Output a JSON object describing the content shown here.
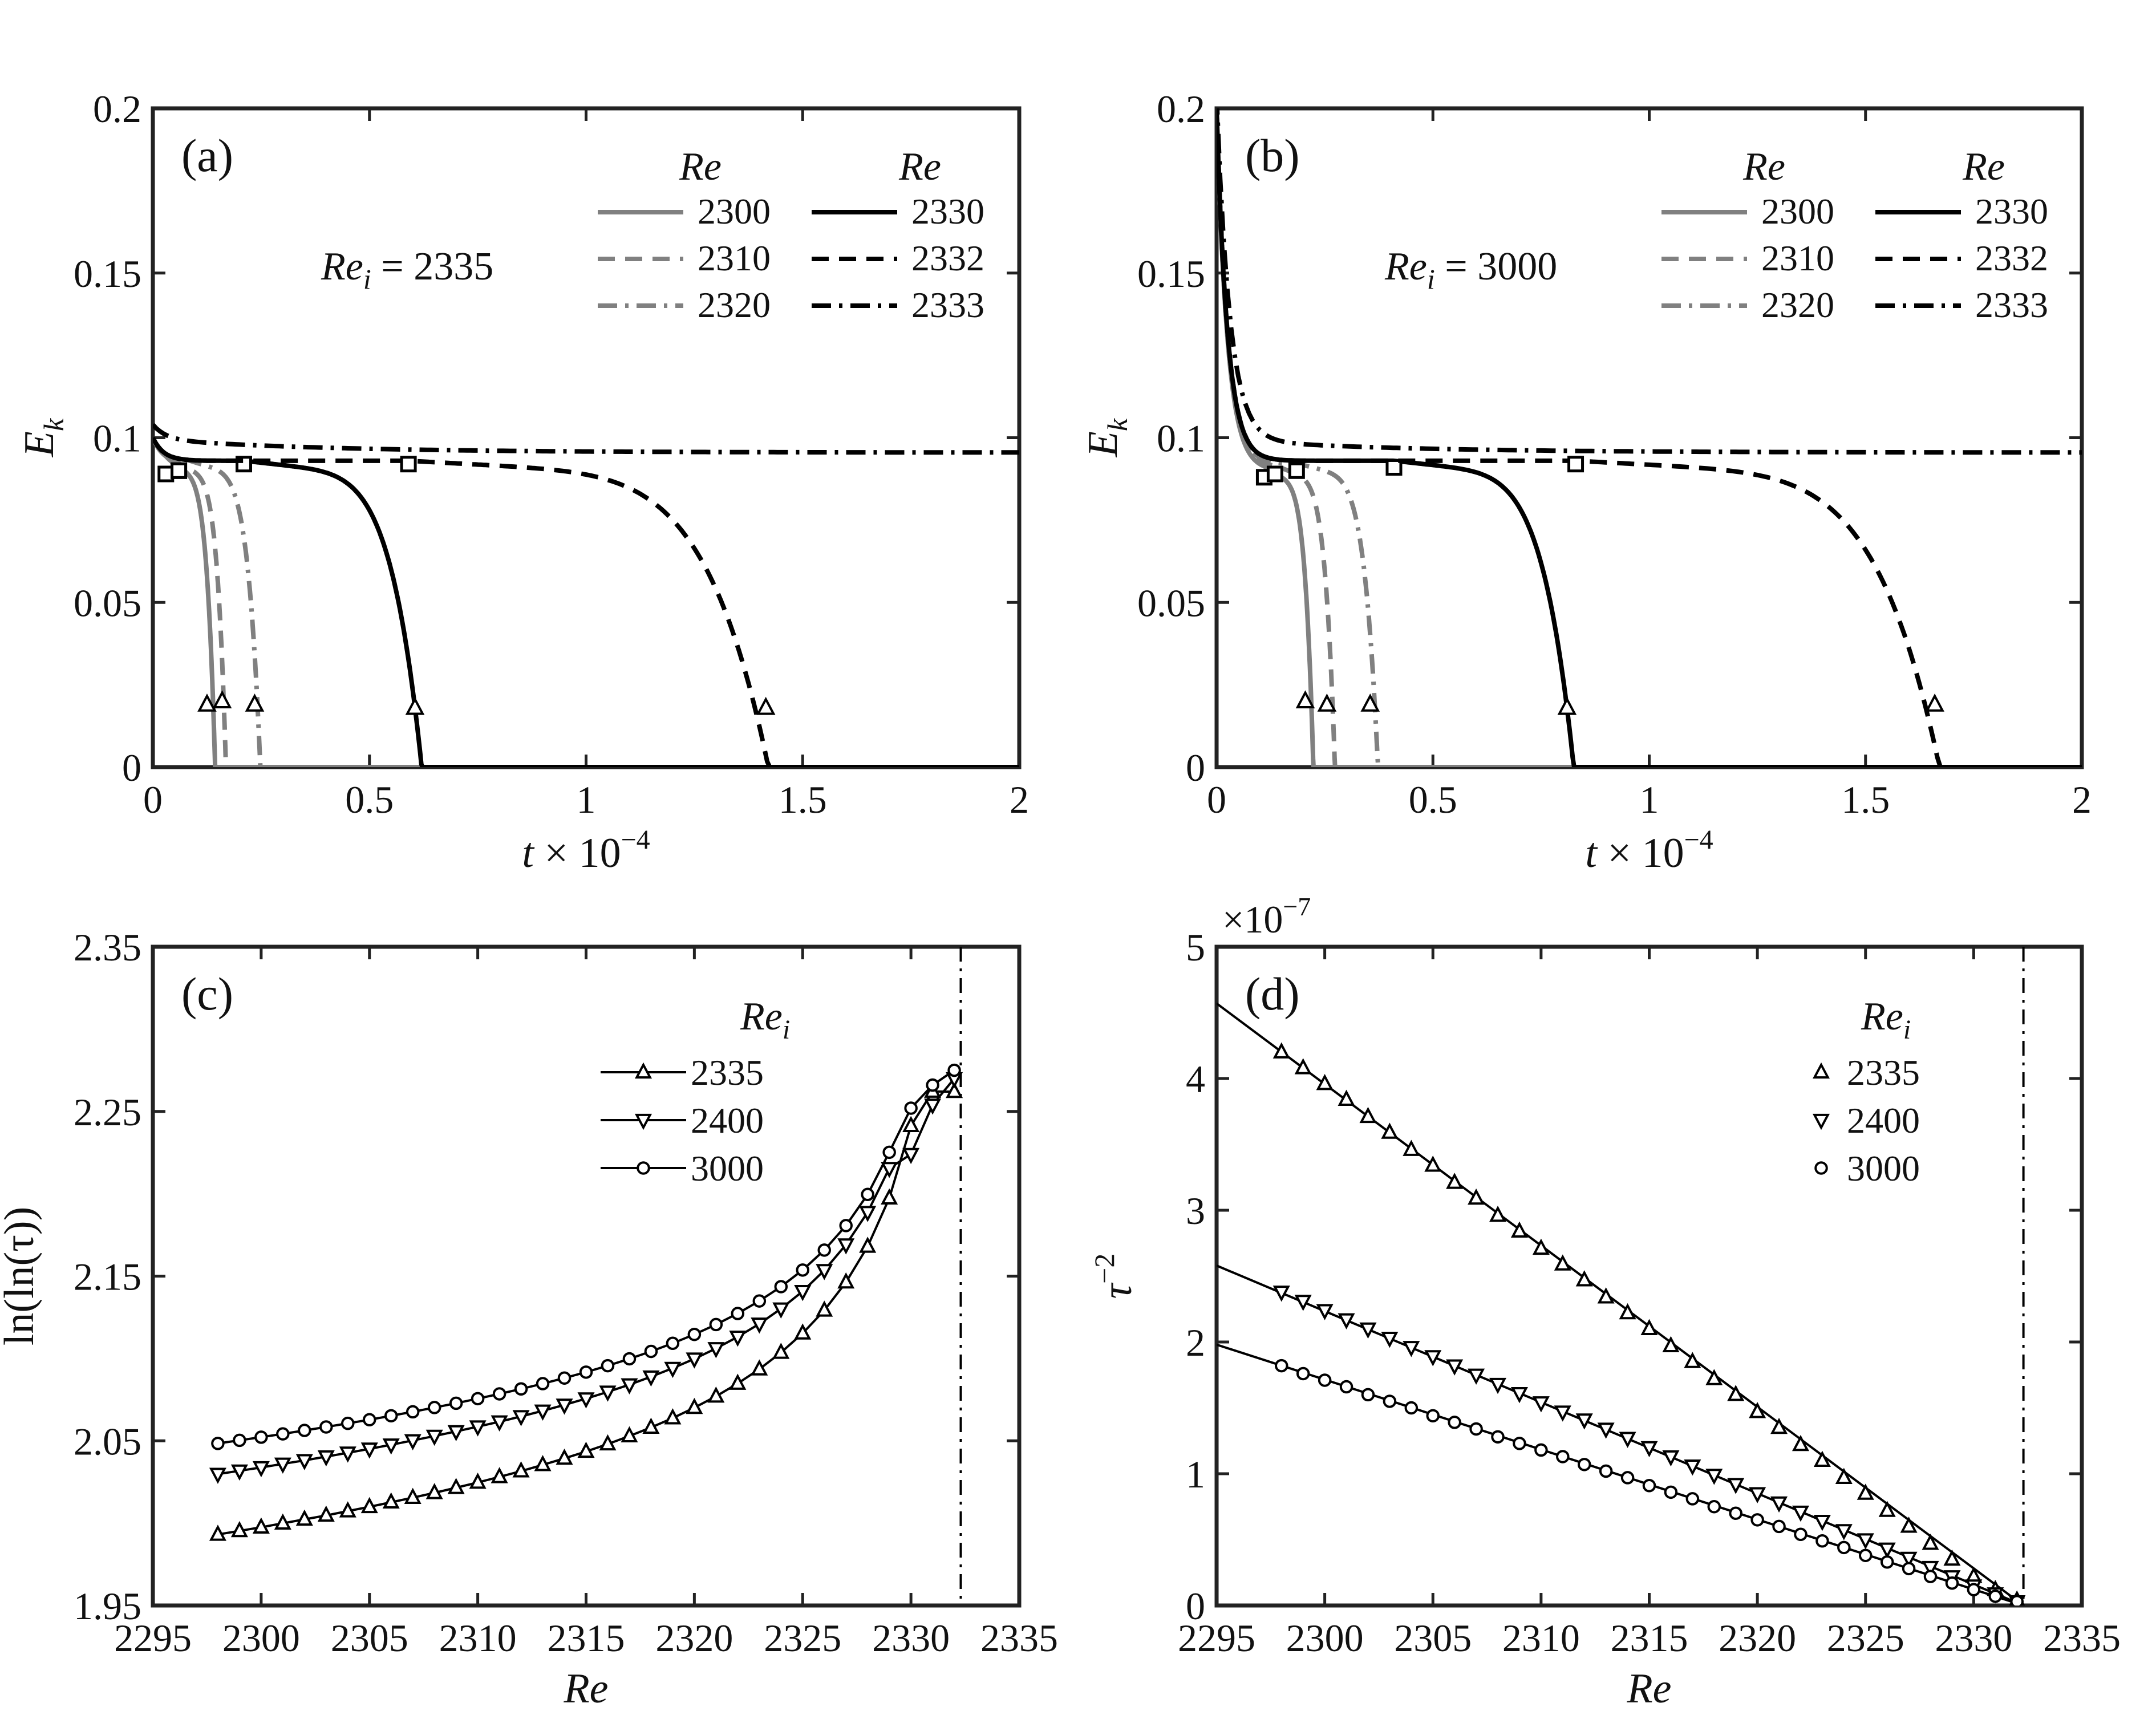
{
  "chart_data": [
    {
      "panel": "(a)",
      "type": "line",
      "xlabel": "t × 10^-4",
      "ylabel": "E_k",
      "xlim": [
        0,
        2
      ],
      "ylim": [
        0,
        0.2
      ],
      "xticks": [
        0,
        0.5,
        1,
        1.5,
        2
      ],
      "xtick_labels": [
        "0",
        "0.5",
        "1",
        "1.5",
        "2"
      ],
      "yticks": [
        0,
        0.05,
        0.1,
        0.15,
        0.2
      ],
      "ytick_labels": [
        "0",
        "0.05",
        "0.1",
        "0.15",
        "0.2"
      ],
      "annotation": {
        "var": "Re",
        "sub": "i",
        "value": "= 2335"
      },
      "legend_title": "Re",
      "start_energy": 0.1,
      "series": [
        {
          "name": "2300",
          "color": "#808080",
          "dash": "solid",
          "t_end": 0.145,
          "t_plateau": 0.03,
          "plateau": 0.092,
          "square_t": 0.03,
          "square_E": 0.089,
          "triangle_t": 0.125,
          "triangle_E": 0.019
        },
        {
          "name": "2310",
          "color": "#808080",
          "dash": "dash",
          "t_end": 0.17,
          "t_plateau": 0.05,
          "plateau": 0.092,
          "square_t": 0.06,
          "square_E": 0.09,
          "triangle_t": 0.16,
          "triangle_E": 0.02
        },
        {
          "name": "2320",
          "color": "#808080",
          "dash": "dashdot",
          "t_end": 0.25,
          "t_plateau": 0.08,
          "plateau": 0.093,
          "square_t": 0.06,
          "square_E": 0.09,
          "triangle_t": 0.235,
          "triangle_E": 0.019
        },
        {
          "name": "2330",
          "color": "#000000",
          "dash": "solid",
          "t_end": 0.625,
          "t_plateau": 0.21,
          "plateau": 0.093,
          "square_t": 0.21,
          "square_E": 0.092,
          "triangle_t": 0.605,
          "triangle_E": 0.018
        },
        {
          "name": "2332",
          "color": "#000000",
          "dash": "dash",
          "t_end": 1.43,
          "t_plateau": 0.59,
          "plateau": 0.093,
          "square_t": 0.59,
          "square_E": 0.092,
          "triangle_t": 1.415,
          "triangle_E": 0.018
        },
        {
          "name": "2333",
          "color": "#000000",
          "dash": "dashdot",
          "t_end": null,
          "plateau": 0.0955
        }
      ]
    },
    {
      "panel": "(b)",
      "type": "line",
      "xlabel": "t × 10^-4",
      "ylabel": "E_k",
      "xlim": [
        0,
        2
      ],
      "ylim": [
        0,
        0.2
      ],
      "xticks": [
        0,
        0.5,
        1,
        1.5,
        2
      ],
      "xtick_labels": [
        "0",
        "0.5",
        "1",
        "1.5",
        "2"
      ],
      "yticks": [
        0,
        0.05,
        0.1,
        0.15,
        0.2
      ],
      "ytick_labels": [
        "0",
        "0.05",
        "0.1",
        "0.15",
        "0.2"
      ],
      "annotation": {
        "var": "Re",
        "sub": "i",
        "value": "= 3000"
      },
      "legend_title": "Re",
      "start_energy": 0.2,
      "series": [
        {
          "name": "2300",
          "color": "#808080",
          "dash": "solid",
          "t_end": 0.225,
          "t_plateau": 0.11,
          "plateau": 0.09,
          "square_t": 0.11,
          "square_E": 0.088,
          "triangle_t": 0.205,
          "triangle_E": 0.02
        },
        {
          "name": "2310",
          "color": "#808080",
          "dash": "dash",
          "t_end": 0.275,
          "t_plateau": 0.14,
          "plateau": 0.091,
          "square_t": 0.135,
          "square_E": 0.089,
          "triangle_t": 0.255,
          "triangle_E": 0.019
        },
        {
          "name": "2320",
          "color": "#808080",
          "dash": "dashdot",
          "t_end": 0.375,
          "t_plateau": 0.19,
          "plateau": 0.092,
          "square_t": 0.185,
          "square_E": 0.09,
          "triangle_t": 0.355,
          "triangle_E": 0.019
        },
        {
          "name": "2330",
          "color": "#000000",
          "dash": "solid",
          "t_end": 0.83,
          "t_plateau": 0.41,
          "plateau": 0.093,
          "square_t": 0.41,
          "square_E": 0.091,
          "triangle_t": 0.81,
          "triangle_E": 0.018
        },
        {
          "name": "2332",
          "color": "#000000",
          "dash": "dash",
          "t_end": 1.68,
          "t_plateau": 0.83,
          "plateau": 0.093,
          "square_t": 0.83,
          "square_E": 0.092,
          "triangle_t": 1.66,
          "triangle_E": 0.019
        },
        {
          "name": "2333",
          "color": "#000000",
          "dash": "dashdot",
          "t_end": null,
          "plateau": 0.0955
        }
      ]
    },
    {
      "panel": "(c)",
      "type": "line",
      "xlabel": "Re",
      "ylabel": "ln(ln(τ))",
      "xlim": [
        2295,
        2335
      ],
      "ylim": [
        1.95,
        2.35
      ],
      "xticks": [
        2295,
        2300,
        2305,
        2310,
        2315,
        2320,
        2325,
        2330,
        2335
      ],
      "xtick_labels": [
        "2295",
        "2300",
        "2305",
        "2310",
        "2315",
        "2320",
        "2325",
        "2330",
        "2335"
      ],
      "yticks": [
        1.95,
        2.05,
        2.15,
        2.25,
        2.35
      ],
      "ytick_labels": [
        "1.95",
        "2.05",
        "2.15",
        "2.25",
        "2.35"
      ],
      "critical_re": 2332.3,
      "legend_title": "Re_i",
      "x": [
        2298,
        2299,
        2300,
        2301,
        2302,
        2303,
        2304,
        2305,
        2306,
        2307,
        2308,
        2309,
        2310,
        2311,
        2312,
        2313,
        2314,
        2315,
        2316,
        2317,
        2318,
        2319,
        2320,
        2321,
        2322,
        2323,
        2324,
        2325,
        2326,
        2327,
        2328,
        2329,
        2330,
        2331,
        2332
      ],
      "series": [
        {
          "name": "2335",
          "marker": "triangle-up",
          "values": [
            1.9931,
            1.9953,
            1.9975,
            1.9999,
            2.0023,
            2.0047,
            2.0073,
            2.0099,
            2.0127,
            2.0155,
            2.0184,
            2.0215,
            2.0247,
            2.0281,
            2.0316,
            2.0354,
            2.0393,
            2.0435,
            2.048,
            2.0529,
            2.0581,
            2.0638,
            2.0701,
            2.077,
            2.0848,
            2.0935,
            2.1036,
            2.1153,
            2.1292,
            2.1463,
            2.168,
            2.1973,
            2.2413,
            2.2621,
            2.262
          ]
        },
        {
          "name": "2400",
          "marker": "triangle-down",
          "values": [
            2.0298,
            2.0318,
            2.0338,
            2.036,
            2.0381,
            2.0404,
            2.0427,
            2.0451,
            2.0476,
            2.0502,
            2.0529,
            2.0557,
            2.0586,
            2.0616,
            2.0648,
            2.0682,
            2.0718,
            2.0756,
            2.0797,
            2.0841,
            2.0889,
            2.0941,
            2.0998,
            2.1061,
            2.1131,
            2.121,
            2.1302,
            2.1408,
            2.1535,
            2.1691,
            2.1888,
            2.2155,
            2.224,
            2.254,
            2.27
          ]
        },
        {
          "name": "3000",
          "marker": "circle",
          "values": [
            2.0484,
            2.0503,
            2.0522,
            2.0542,
            2.0563,
            2.0584,
            2.0606,
            2.0628,
            2.0652,
            2.0676,
            2.0702,
            2.0728,
            2.0756,
            2.0785,
            2.0815,
            2.0847,
            2.0881,
            2.0917,
            2.0956,
            2.0998,
            2.1043,
            2.1092,
            2.1146,
            2.1206,
            2.1273,
            2.1349,
            2.1436,
            2.1537,
            2.1658,
            2.1807,
            2.1996,
            2.2252,
            2.252,
            2.266,
            2.275
          ]
        }
      ]
    },
    {
      "panel": "(d)",
      "type": "scatter",
      "xlabel": "Re",
      "ylabel": "τ^-2",
      "xlim": [
        2295,
        2335
      ],
      "ylim": [
        0,
        5
      ],
      "scale_label": "×10^-7",
      "xticks": [
        2295,
        2300,
        2305,
        2310,
        2315,
        2320,
        2325,
        2330,
        2335
      ],
      "xtick_labels": [
        "2295",
        "2300",
        "2305",
        "2310",
        "2315",
        "2320",
        "2325",
        "2330",
        "2335"
      ],
      "yticks": [
        0,
        1,
        2,
        3,
        4,
        5
      ],
      "ytick_labels": [
        "0",
        "1",
        "2",
        "3",
        "4",
        "5"
      ],
      "critical_re": 2332.3,
      "legend_title": "Re_i",
      "x": [
        2298,
        2299,
        2300,
        2301,
        2302,
        2303,
        2304,
        2305,
        2306,
        2307,
        2308,
        2309,
        2310,
        2311,
        2312,
        2313,
        2314,
        2315,
        2316,
        2317,
        2318,
        2319,
        2320,
        2321,
        2322,
        2323,
        2324,
        2325,
        2326,
        2327,
        2328,
        2329,
        2330,
        2331,
        2332
      ],
      "series": [
        {
          "name": "2335",
          "marker": "triangle-up",
          "fit": {
            "x0": 2295,
            "y0": 4.57,
            "x1": 2332.3,
            "y1": 0.0
          },
          "values": [
            4.2,
            4.08,
            3.96,
            3.84,
            3.71,
            3.59,
            3.46,
            3.34,
            3.21,
            3.09,
            2.96,
            2.84,
            2.71,
            2.59,
            2.47,
            2.34,
            2.22,
            2.1,
            1.97,
            1.85,
            1.72,
            1.6,
            1.47,
            1.35,
            1.22,
            1.1,
            0.97,
            0.85,
            0.72,
            0.6,
            0.47,
            0.35,
            0.22,
            0.12,
            0.04
          ]
        },
        {
          "name": "2400",
          "marker": "triangle-down",
          "fit": {
            "x0": 2295,
            "y0": 2.58,
            "x1": 2332.3,
            "y1": 0.0
          },
          "values": [
            2.38,
            2.31,
            2.24,
            2.17,
            2.1,
            2.03,
            1.96,
            1.89,
            1.82,
            1.75,
            1.68,
            1.61,
            1.54,
            1.47,
            1.41,
            1.34,
            1.27,
            1.2,
            1.13,
            1.06,
            0.99,
            0.92,
            0.85,
            0.78,
            0.71,
            0.64,
            0.57,
            0.5,
            0.43,
            0.36,
            0.29,
            0.22,
            0.15,
            0.09,
            0.03
          ]
        },
        {
          "name": "3000",
          "marker": "circle",
          "fit": {
            "x0": 2295,
            "y0": 1.98,
            "x1": 2332.3,
            "y1": 0.0
          },
          "values": [
            1.82,
            1.76,
            1.71,
            1.66,
            1.6,
            1.55,
            1.5,
            1.44,
            1.39,
            1.34,
            1.28,
            1.23,
            1.18,
            1.13,
            1.07,
            1.02,
            0.97,
            0.91,
            0.86,
            0.81,
            0.75,
            0.7,
            0.65,
            0.6,
            0.54,
            0.49,
            0.44,
            0.38,
            0.33,
            0.28,
            0.22,
            0.17,
            0.12,
            0.07,
            0.03
          ]
        }
      ]
    }
  ]
}
